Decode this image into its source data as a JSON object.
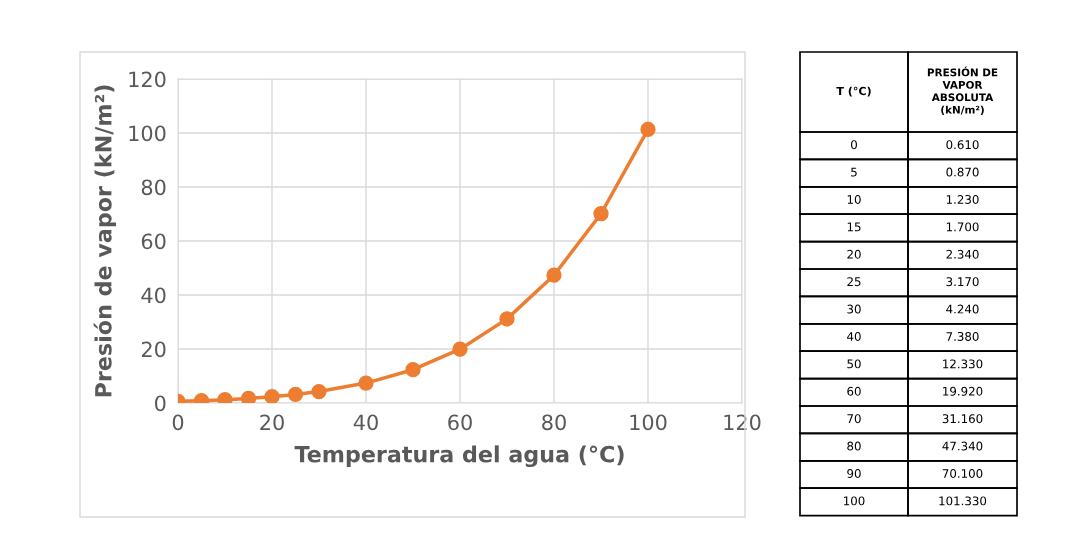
{
  "chart_data": {
    "type": "line",
    "xlabel": "Temperatura del agua (°C)",
    "ylabel": "Presión de vapor (kN/m²)",
    "x": [
      0,
      5,
      10,
      15,
      20,
      25,
      30,
      40,
      50,
      60,
      70,
      80,
      90,
      100
    ],
    "series": [
      {
        "color": "#ed7d31",
        "values": [
          0.61,
          0.87,
          1.23,
          1.7,
          2.34,
          3.17,
          4.24,
          7.38,
          12.33,
          19.92,
          31.16,
          47.34,
          70.1,
          101.33
        ]
      }
    ],
    "annotations": [
      "T (°C)",
      "PRESIÓN DE\nVAPOR\nABSOLUTA\n(kN/m²)",
      "0",
      "0.610",
      "5",
      "0.870",
      "10",
      "1.230",
      "15",
      "1.700",
      "20",
      "2.340",
      "25",
      "3.170",
      "30",
      "4.240",
      "40",
      "7.380",
      "50",
      "12.330",
      "60",
      "19.920",
      "70",
      "31.160",
      "80",
      "47.340",
      "90",
      "70.100",
      "100",
      "101.330"
    ],
    "xlim": [
      0,
      120
    ],
    "ylim": [
      0,
      120
    ],
    "xticks": [
      0,
      20,
      40,
      60,
      80,
      100,
      120
    ],
    "yticks": [
      0,
      20,
      40,
      60,
      80,
      100,
      120
    ],
    "grid": true,
    "marker": "circle",
    "line_style": "solid"
  }
}
